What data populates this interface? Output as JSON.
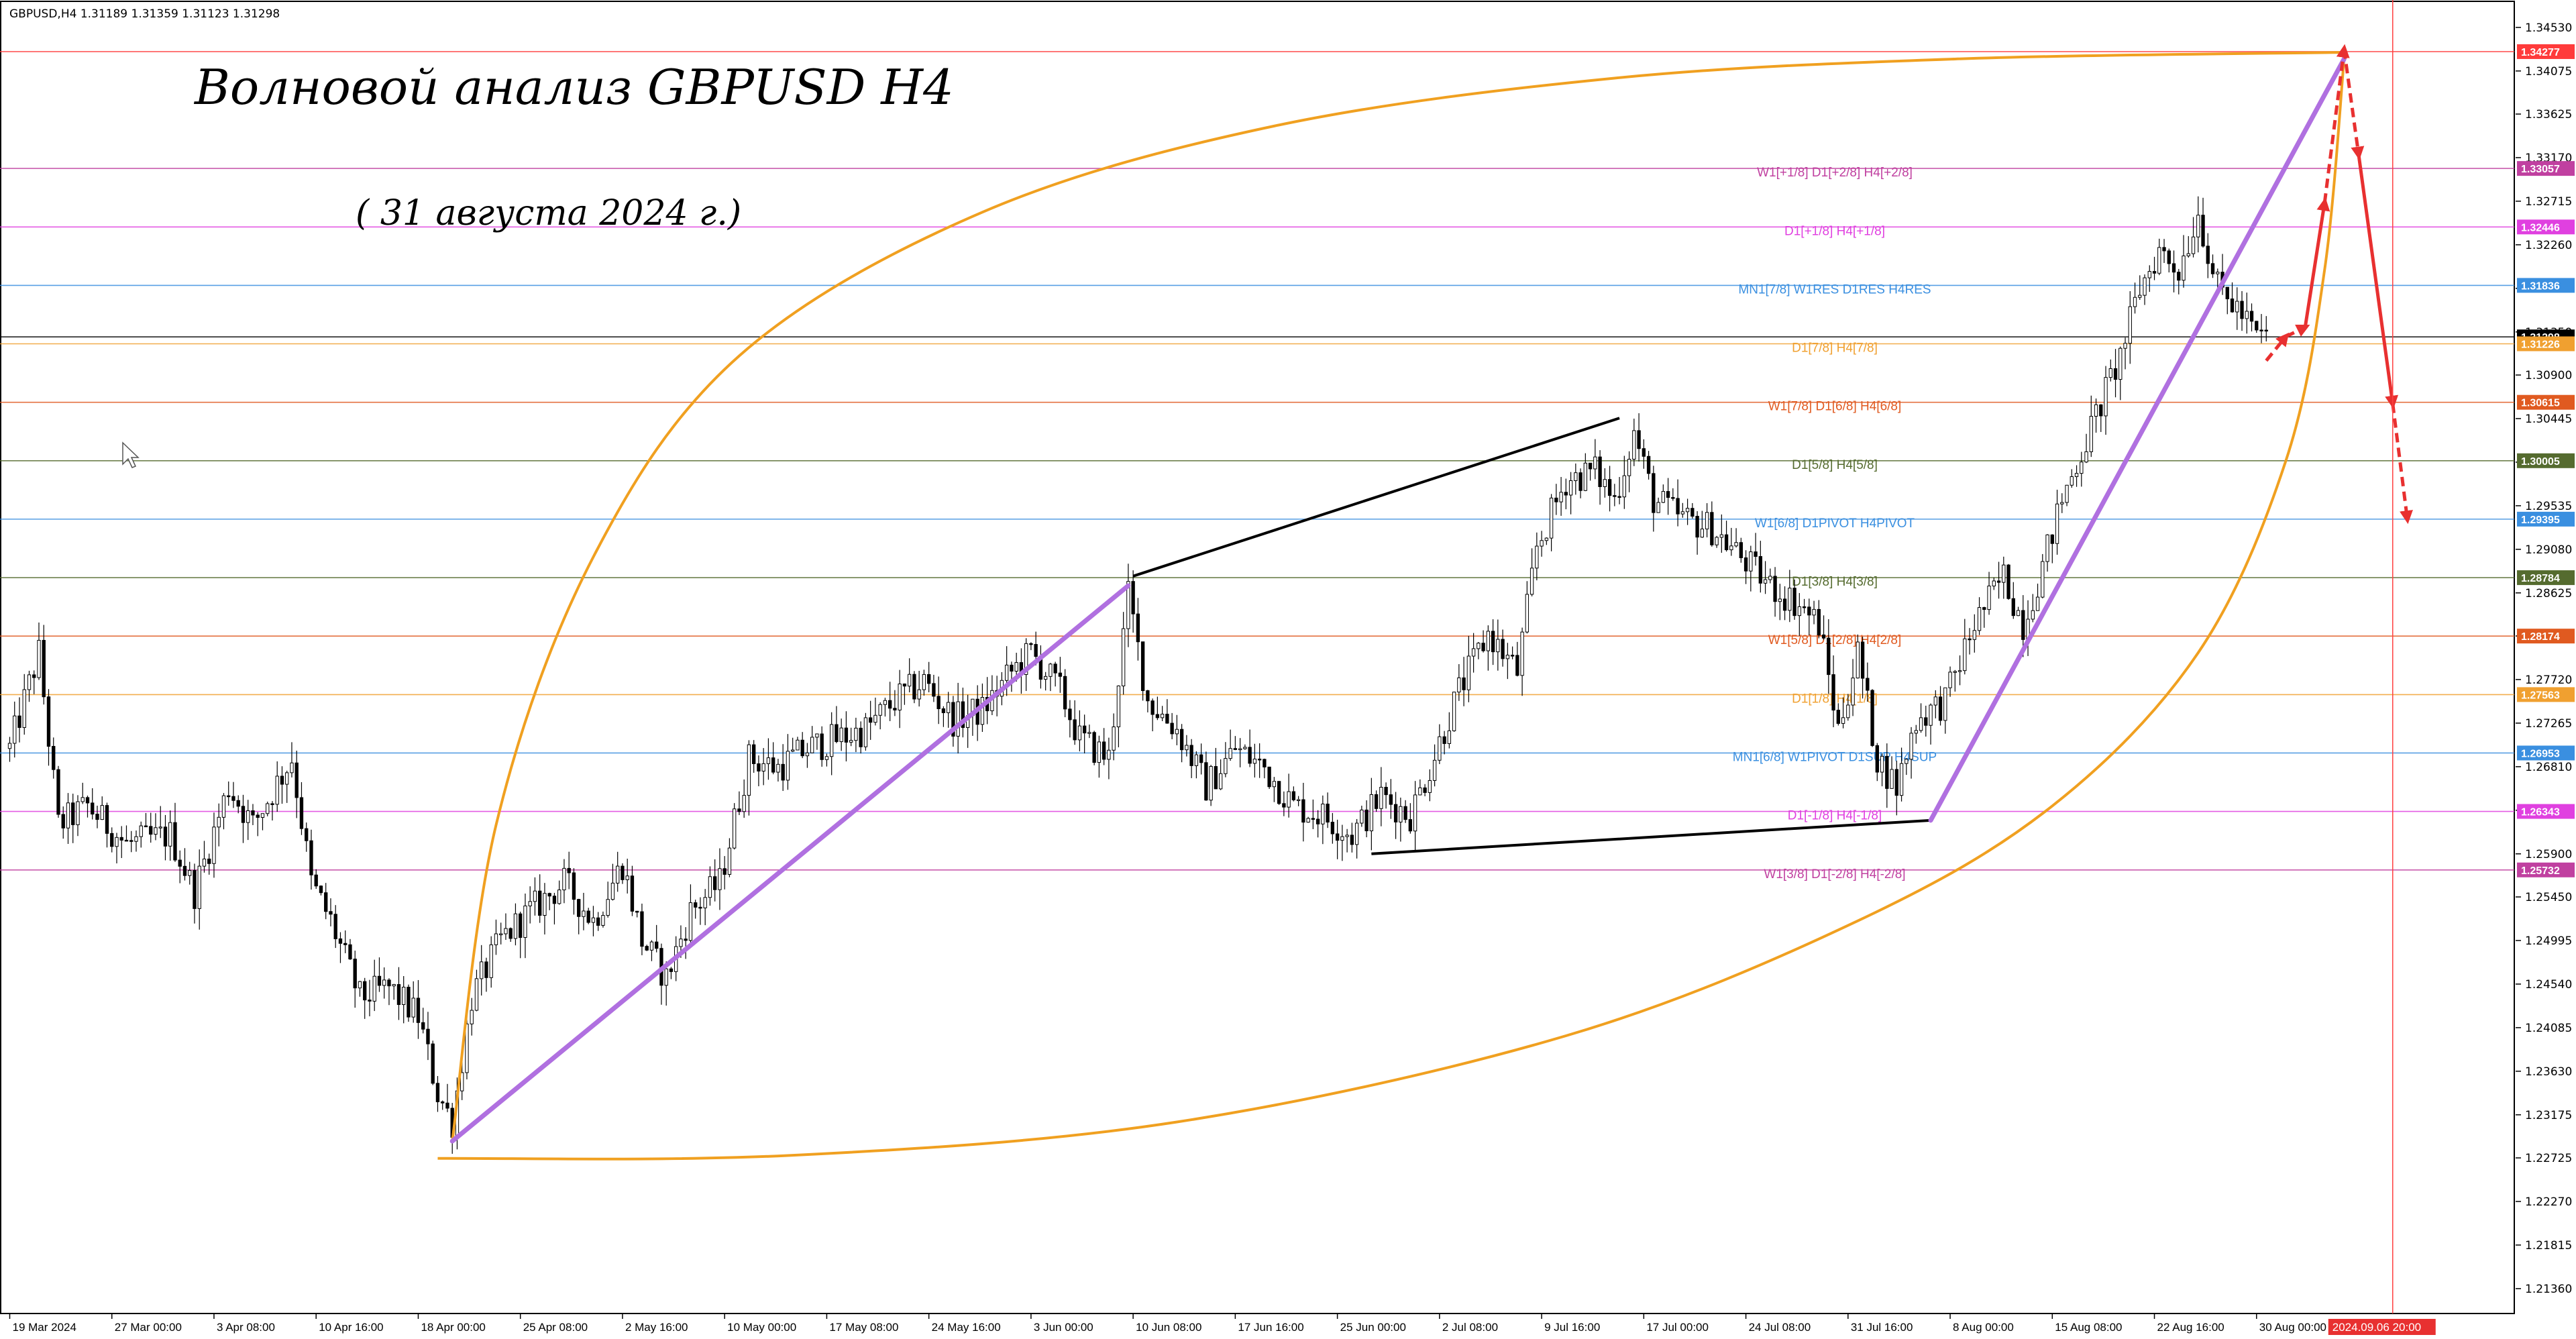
{
  "header": {
    "symbol_tf": "GBPUSD,H4",
    "ohlc": "1.31189 1.31359 1.31123 1.31298"
  },
  "chart_data": {
    "type": "line",
    "title": "Волновой анализ GBPUSD H4",
    "subtitle": "( 31 августа 2024 г.)",
    "ylim": [
      1.211,
      1.3476
    ],
    "y_ticks": [
      "1.34530",
      "1.34075",
      "1.33625",
      "1.33170",
      "1.32715",
      "1.32260",
      "1.31805",
      "1.31350",
      "1.30900",
      "1.30445",
      "1.29990",
      "1.29535",
      "1.29080",
      "1.28625",
      "1.28175",
      "1.27720",
      "1.27265",
      "1.26810",
      "1.26355",
      "1.25900",
      "1.25450",
      "1.24995",
      "1.24540",
      "1.24085",
      "1.23630",
      "1.23175",
      "1.22725",
      "1.22270",
      "1.21815",
      "1.21360"
    ],
    "x_labels": [
      {
        "t": 0,
        "label": "19 Mar 2024"
      },
      {
        "t": 21,
        "label": "27 Mar 00:00"
      },
      {
        "t": 42,
        "label": "3 Apr 08:00"
      },
      {
        "t": 63,
        "label": "10 Apr 16:00"
      },
      {
        "t": 84,
        "label": "18 Apr 00:00"
      },
      {
        "t": 105,
        "label": "25 Apr 08:00"
      },
      {
        "t": 126,
        "label": "2 May 16:00"
      },
      {
        "t": 147,
        "label": "10 May 00:00"
      },
      {
        "t": 168,
        "label": "17 May 08:00"
      },
      {
        "t": 189,
        "label": "24 May 16:00"
      },
      {
        "t": 210,
        "label": "3 Jun 00:00"
      },
      {
        "t": 231,
        "label": "10 Jun 08:00"
      },
      {
        "t": 252,
        "label": "17 Jun 16:00"
      },
      {
        "t": 273,
        "label": "25 Jun 00:00"
      },
      {
        "t": 294,
        "label": "2 Jul 08:00"
      },
      {
        "t": 315,
        "label": "9 Jul 16:00"
      },
      {
        "t": 336,
        "label": "17 Jul 00:00"
      },
      {
        "t": 357,
        "label": "24 Jul 08:00"
      },
      {
        "t": 378,
        "label": "31 Jul 16:00"
      },
      {
        "t": 399,
        "label": "8 Aug 00:00"
      },
      {
        "t": 420,
        "label": "15 Aug 08:00"
      },
      {
        "t": 441,
        "label": "22 Aug 16:00"
      },
      {
        "t": 462,
        "label": "30 Aug 00:00"
      }
    ],
    "price_path": [
      [
        0,
        1.27
      ],
      [
        6,
        1.28
      ],
      [
        10,
        1.262
      ],
      [
        16,
        1.264
      ],
      [
        24,
        1.26
      ],
      [
        33,
        1.261
      ],
      [
        38,
        1.255
      ],
      [
        45,
        1.266
      ],
      [
        50,
        1.262
      ],
      [
        58,
        1.269
      ],
      [
        62,
        1.256
      ],
      [
        66,
        1.252
      ],
      [
        72,
        1.244
      ],
      [
        78,
        1.245
      ],
      [
        84,
        1.242
      ],
      [
        88,
        1.234
      ],
      [
        91,
        1.231
      ],
      [
        95,
        1.244
      ],
      [
        101,
        1.25
      ],
      [
        107,
        1.253
      ],
      [
        114,
        1.256
      ],
      [
        120,
        1.252
      ],
      [
        126,
        1.258
      ],
      [
        130,
        1.25
      ],
      [
        135,
        1.246
      ],
      [
        140,
        1.253
      ],
      [
        146,
        1.256
      ],
      [
        152,
        1.269
      ],
      [
        158,
        1.268
      ],
      [
        164,
        1.27
      ],
      [
        170,
        1.271
      ],
      [
        176,
        1.272
      ],
      [
        182,
        1.275
      ],
      [
        188,
        1.277
      ],
      [
        194,
        1.273
      ],
      [
        200,
        1.274
      ],
      [
        206,
        1.278
      ],
      [
        210,
        1.28
      ],
      [
        216,
        1.276
      ],
      [
        220,
        1.271
      ],
      [
        226,
        1.269
      ],
      [
        230,
        1.286
      ],
      [
        234,
        1.275
      ],
      [
        240,
        1.272
      ],
      [
        246,
        1.266
      ],
      [
        252,
        1.27
      ],
      [
        258,
        1.268
      ],
      [
        264,
        1.264
      ],
      [
        270,
        1.263
      ],
      [
        276,
        1.261
      ],
      [
        282,
        1.265
      ],
      [
        288,
        1.263
      ],
      [
        292,
        1.268
      ],
      [
        298,
        1.276
      ],
      [
        304,
        1.282
      ],
      [
        310,
        1.278
      ],
      [
        314,
        1.291
      ],
      [
        320,
        1.298
      ],
      [
        326,
        1.299
      ],
      [
        330,
        1.296
      ],
      [
        334,
        1.303
      ],
      [
        338,
        1.296
      ],
      [
        344,
        1.294
      ],
      [
        350,
        1.293
      ],
      [
        356,
        1.29
      ],
      [
        362,
        1.287
      ],
      [
        368,
        1.285
      ],
      [
        372,
        1.283
      ],
      [
        376,
        1.272
      ],
      [
        380,
        1.28
      ],
      [
        384,
        1.269
      ],
      [
        388,
        1.266
      ],
      [
        392,
        1.273
      ],
      [
        398,
        1.275
      ],
      [
        404,
        1.283
      ],
      [
        410,
        1.288
      ],
      [
        414,
        1.283
      ],
      [
        418,
        1.289
      ],
      [
        422,
        1.296
      ],
      [
        426,
        1.301
      ],
      [
        430,
        1.306
      ],
      [
        434,
        1.311
      ],
      [
        438,
        1.318
      ],
      [
        442,
        1.322
      ],
      [
        446,
        1.32
      ],
      [
        450,
        1.326
      ],
      [
        454,
        1.318
      ],
      [
        458,
        1.316
      ],
      [
        462,
        1.313
      ],
      [
        464,
        1.313
      ]
    ],
    "levels": [
      {
        "price": 1.34277,
        "label": "",
        "tag": "1.34277",
        "color": "#ff3b3b",
        "text": "#ffffff"
      },
      {
        "price": 1.33057,
        "label": "W1[+1/8] D1[+2/8] H4[+2/8]",
        "tag": "1.33057",
        "color": "#c040a0",
        "text": "#ffffff"
      },
      {
        "price": 1.32446,
        "label": "D1[+1/8] H4[+1/8]",
        "tag": "1.32446",
        "color": "#e040e0",
        "text": "#ffffff"
      },
      {
        "price": 1.31836,
        "label": "MN1[7/8] W1RES D1RES H4RES",
        "tag": "1.31836",
        "color": "#3a8fe0",
        "text": "#ffffff"
      },
      {
        "price": 1.31298,
        "label": "",
        "tag": "1.31298",
        "color": "#000000",
        "text": "#ffffff"
      },
      {
        "price": 1.31226,
        "label": "D1[7/8] H4[7/8]",
        "tag": "1.31226",
        "color": "#f0a030",
        "text": "#ffffff"
      },
      {
        "price": 1.30615,
        "label": "W1[7/8] D1[6/8] H4[6/8]",
        "tag": "1.30615",
        "color": "#e05a20",
        "text": "#ffffff"
      },
      {
        "price": 1.30005,
        "label": "D1[5/8] H4[5/8]",
        "tag": "1.30005",
        "color": "#556b2f",
        "text": "#ffffff"
      },
      {
        "price": 1.29395,
        "label": "W1[6/8] D1PIVOT H4PIVOT",
        "tag": "1.29395",
        "color": "#3a8fe0",
        "text": "#ffffff"
      },
      {
        "price": 1.28784,
        "label": "D1[3/8] H4[3/8]",
        "tag": "1.28784",
        "color": "#556b2f",
        "text": "#ffffff"
      },
      {
        "price": 1.28174,
        "label": "W1[5/8] D1[2/8] H4[2/8]",
        "tag": "1.28174",
        "color": "#e05a20",
        "text": "#ffffff"
      },
      {
        "price": 1.27563,
        "label": "D1[1/8] H4[1/8]",
        "tag": "1.27563",
        "color": "#f0a030",
        "text": "#ffffff"
      },
      {
        "price": 1.26953,
        "label": "MN1[6/8] W1PIVOT D1SUP H4SUP",
        "tag": "1.26953",
        "color": "#3a8fe0",
        "text": "#ffffff"
      },
      {
        "price": 1.26343,
        "label": "D1[-1/8] H4[-1/8]",
        "tag": "1.26343",
        "color": "#e040e0",
        "text": "#ffffff"
      },
      {
        "price": 1.25732,
        "label": "W1[3/8] D1[-2/8] H4[-2/8]",
        "tag": "1.25732",
        "color": "#c040a0",
        "text": "#ffffff"
      }
    ],
    "channel_upper": [
      [
        231,
        1.288
      ],
      [
        331,
        1.3045
      ]
    ],
    "channel_lower": [
      [
        280,
        1.259
      ],
      [
        395,
        1.2625
      ]
    ],
    "trend_lines": [
      [
        [
          91,
          1.229
        ],
        [
          230,
          1.287
        ]
      ],
      [
        [
          395,
          1.2625
        ],
        [
          480,
          1.342
        ]
      ]
    ],
    "arc_upper": [
      [
        91,
        1.229
      ],
      [
        100,
        1.262
      ],
      [
        120,
        1.29
      ],
      [
        150,
        1.311
      ],
      [
        200,
        1.326
      ],
      [
        260,
        1.335
      ],
      [
        330,
        1.34
      ],
      [
        400,
        1.342
      ],
      [
        480,
        1.3427
      ]
    ],
    "arc_lower": [
      [
        88,
        1.2272
      ],
      [
        160,
        1.2275
      ],
      [
        240,
        1.231
      ],
      [
        320,
        1.24
      ],
      [
        380,
        1.252
      ],
      [
        420,
        1.264
      ],
      [
        450,
        1.28
      ],
      [
        468,
        1.3
      ],
      [
        476,
        1.32
      ],
      [
        480,
        1.342
      ]
    ],
    "forecast": [
      [
        464,
        1.3105
      ],
      [
        468,
        1.313
      ],
      [
        472,
        1.314
      ],
      [
        476,
        1.327
      ],
      [
        480,
        1.343
      ],
      [
        483,
        1.332
      ],
      [
        490,
        1.306
      ],
      [
        493,
        1.294
      ]
    ],
    "forecast_dashed": [
      [
        true
      ],
      [
        true
      ],
      [
        false
      ],
      [
        true
      ],
      [
        true
      ],
      [
        false
      ],
      [
        true
      ]
    ],
    "cursor_time_label": "2024.09.06 20:00",
    "cursor_time_t": 490
  }
}
